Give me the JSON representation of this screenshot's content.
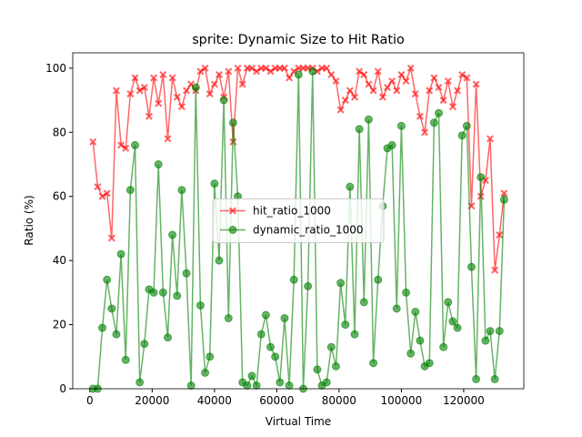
{
  "chart_data": {
    "type": "line",
    "title": "sprite: Dynamic Size to Hit Ratio",
    "xlabel": "Virtual Time",
    "ylabel": "Ratio (%)",
    "x": [
      1000,
      2500,
      4000,
      5500,
      7000,
      8500,
      10000,
      11500,
      13000,
      14500,
      16000,
      17500,
      19000,
      20500,
      22000,
      23500,
      25000,
      26500,
      28000,
      29500,
      31000,
      32500,
      34000,
      35500,
      37000,
      38500,
      40000,
      41500,
      43000,
      44500,
      46000,
      47500,
      49000,
      50500,
      52000,
      53500,
      55000,
      56500,
      58000,
      59500,
      61000,
      62500,
      64000,
      65500,
      67000,
      68500,
      70000,
      71500,
      73000,
      74500,
      76000,
      77500,
      79000,
      80500,
      82000,
      83500,
      85000,
      86500,
      88000,
      89500,
      91000,
      92500,
      94000,
      95500,
      97000,
      98500,
      100000,
      101500,
      103000,
      104500,
      106000,
      107500,
      109000,
      110500,
      112000,
      113500,
      115000,
      116500,
      118000,
      119500,
      121000,
      122500,
      124000,
      125500,
      127000,
      128500,
      130000,
      131500,
      133000
    ],
    "series": [
      {
        "name": "hit_ratio_1000",
        "color": "#ff0000",
        "marker": "X",
        "values": [
          77,
          63,
          60,
          61,
          47,
          93,
          76,
          75,
          92,
          97,
          93,
          94,
          85,
          97,
          89,
          98,
          78,
          97,
          91,
          88,
          93,
          95,
          93,
          99,
          100,
          92,
          95,
          98,
          91,
          99,
          77,
          100,
          95,
          100,
          100,
          99,
          100,
          100,
          99,
          100,
          100,
          100,
          97,
          99,
          100,
          100,
          100,
          100,
          99,
          100,
          100,
          98,
          96,
          87,
          90,
          93,
          91,
          99,
          98,
          95,
          93,
          99,
          91,
          94,
          96,
          93,
          98,
          96,
          100,
          92,
          85,
          80,
          93,
          97,
          94,
          90,
          96,
          88,
          93,
          98,
          97,
          57,
          95,
          60,
          65,
          78,
          37,
          48,
          61
        ]
      },
      {
        "name": "dynamic_ratio_1000",
        "color": "#008000",
        "marker": "o",
        "values": [
          0,
          0,
          19,
          34,
          25,
          17,
          42,
          9,
          62,
          76,
          2,
          14,
          31,
          30,
          70,
          30,
          16,
          48,
          29,
          62,
          36,
          1,
          94,
          26,
          5,
          10,
          64,
          40,
          90,
          22,
          83,
          60,
          2,
          1,
          4,
          1,
          17,
          23,
          13,
          10,
          2,
          22,
          1,
          34,
          98,
          0,
          32,
          99,
          6,
          1,
          2,
          13,
          7,
          33,
          20,
          63,
          17,
          81,
          27,
          84,
          8,
          34,
          57,
          75,
          76,
          25,
          82,
          30,
          11,
          24,
          15,
          7,
          8,
          83,
          86,
          13,
          27,
          21,
          19,
          79,
          82,
          38,
          3,
          66,
          15,
          18,
          3,
          18,
          59
        ]
      }
    ],
    "xlim": [
      -5500,
      139300
    ],
    "ylim": [
      0,
      104.8
    ],
    "xticks": [
      {
        "value": 0,
        "label": "0"
      },
      20000,
      40000,
      60000,
      80000,
      100000,
      120000
    ],
    "yticks": [
      0,
      20,
      40,
      60,
      80,
      100
    ],
    "legend": "center"
  }
}
